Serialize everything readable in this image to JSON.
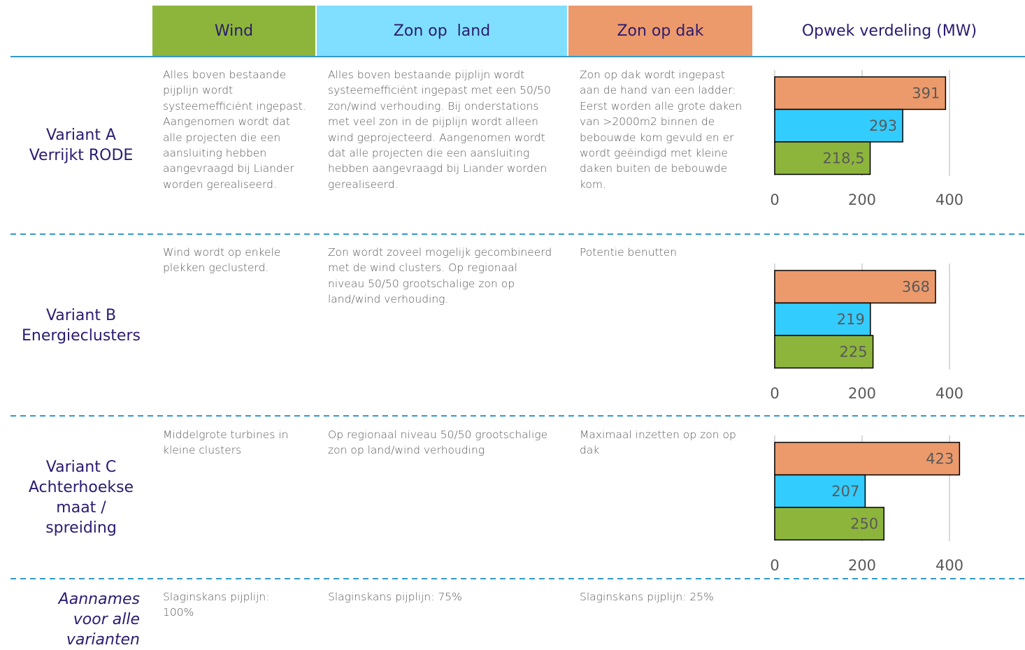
{
  "header": {
    "columns": [
      "Wind",
      "Zon op  land",
      "Zon op dak",
      "Opwek verdeling (MW)"
    ]
  },
  "rows": [
    {
      "label": [
        "Variant A",
        "Verrijkt RODE"
      ],
      "cells": [
        "Alles boven bestaande pijplijn wordt systeemefficiënt ingepast. Aangenomen wordt dat alle projecten die een aansluiting hebben aangevraagd bij Liander worden gerealiseerd.",
        "Alles boven bestaande pijplijn wordt systeemefficiënt ingepast met een 50/50 zon/wind verhouding. Bij onderstations met veel zon in de pijplijn wordt alleen wind geprojecteerd. Aangenomen wordt dat alle projecten die een aansluiting hebben aangevraagd bij Liander worden gerealiseerd.",
        "Zon op dak wordt ingepast aan de hand van een ladder: Eerst worden alle grote daken van >2000m2 binnen de bebouwde kom gevuld en er wordt geëindigd met kleine daken buiten de bebouwde kom."
      ],
      "chart": {
        "type": "bar",
        "orientation": "horizontal",
        "values": [
          391,
          293,
          218.5
        ],
        "value_labels": [
          "391",
          "293",
          "218,5"
        ],
        "colors": [
          "#ec9a6b",
          "#33ccff",
          "#8db53c"
        ],
        "xlim": [
          0,
          400
        ],
        "xticks": [
          0,
          200,
          400
        ],
        "grid": true
      }
    },
    {
      "label": [
        "Variant B",
        "Energieclusters"
      ],
      "cells": [
        "Wind wordt op enkele plekken geclusterd.",
        "Zon wordt zoveel mogelijk gecombineerd met de wind clusters. Op regionaal niveau 50/50 grootschalige zon op land/wind verhouding.",
        "Potentie benutten"
      ],
      "chart": {
        "type": "bar",
        "orientation": "horizontal",
        "values": [
          368,
          219,
          225
        ],
        "colors": [
          "#ec9a6b",
          "#33ccff",
          "#8db53c"
        ],
        "xlim": [
          0,
          400
        ],
        "xticks": [
          0,
          200,
          400
        ],
        "grid": true
      }
    },
    {
      "label": [
        "Variant C",
        "Achterhoekse",
        "maat /",
        "spreiding"
      ],
      "cells": [
        "Middelgrote turbines in kleine clusters",
        "Op regionaal niveau 50/50 grootschalige zon op land/wind verhouding",
        "Maximaal inzetten op zon op dak"
      ],
      "chart": {
        "type": "bar",
        "orientation": "horizontal",
        "values": [
          423,
          207,
          250
        ],
        "colors": [
          "#ec9a6b",
          "#33ccff",
          "#8db53c"
        ],
        "xlim": [
          0,
          400
        ],
        "xticks": [
          0,
          200,
          400
        ],
        "grid": true
      }
    }
  ],
  "assumptions": {
    "label": [
      "Aannames",
      "voor alle",
      "varianten"
    ],
    "cells": [
      "Slaginskans pijplijn: 100%",
      "Slaginskans pijplijn: 75%",
      "Slaginskans pijplijn: 25%"
    ]
  }
}
